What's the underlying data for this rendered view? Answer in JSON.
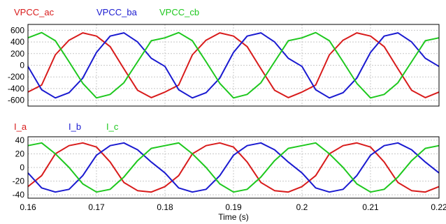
{
  "colors": {
    "red": "#d81b1b",
    "blue": "#1a1ad0",
    "green": "#1ec81e"
  },
  "chart_data": [
    {
      "type": "line",
      "xlabel": "",
      "ylabel": "",
      "xlim": [
        0.16,
        0.22
      ],
      "ylim": [
        -700,
        700
      ],
      "yticks": [
        "600",
        "400",
        "200",
        "0",
        "-200",
        "-400",
        "-600"
      ],
      "ytick_values": [
        600,
        400,
        200,
        0,
        -200,
        -400,
        -600
      ],
      "grid": true,
      "legend_position": "top-left",
      "series": [
        {
          "name": "VPCC_ac",
          "color": "#d81b1b",
          "x": [
            0.16,
            0.162,
            0.164,
            0.166,
            0.168,
            0.17,
            0.172,
            0.174,
            0.176,
            0.178,
            0.18,
            0.182,
            0.184,
            0.186,
            0.188,
            0.19,
            0.192,
            0.194,
            0.196,
            0.198,
            0.2,
            0.202,
            0.204,
            0.206,
            0.208,
            0.21,
            0.212,
            0.214,
            0.216,
            0.218,
            0.22
          ],
          "values": [
            -460,
            -340,
            180,
            430,
            555,
            500,
            320,
            -60,
            -430,
            -555,
            -460,
            -340,
            180,
            430,
            555,
            500,
            320,
            -60,
            -430,
            -555,
            -460,
            -340,
            180,
            430,
            555,
            500,
            320,
            -60,
            -430,
            -555,
            -460
          ]
        },
        {
          "name": "VPCC_ba",
          "color": "#1a1ad0",
          "x": [
            0.16,
            0.162,
            0.164,
            0.166,
            0.168,
            0.17,
            0.172,
            0.174,
            0.176,
            0.178,
            0.18,
            0.182,
            0.184,
            0.186,
            0.188,
            0.19,
            0.192,
            0.194,
            0.196,
            0.198,
            0.2,
            0.202,
            0.204,
            0.206,
            0.208,
            0.21,
            0.212,
            0.214,
            0.216,
            0.218,
            0.22
          ],
          "values": [
            -20,
            -420,
            -560,
            -470,
            -220,
            220,
            500,
            555,
            400,
            120,
            -20,
            -420,
            -560,
            -470,
            -220,
            220,
            500,
            555,
            400,
            120,
            -20,
            -420,
            -560,
            -470,
            -220,
            220,
            500,
            555,
            400,
            120,
            -20
          ]
        },
        {
          "name": "VPCC_cb",
          "color": "#1ec81e",
          "x": [
            0.16,
            0.162,
            0.164,
            0.166,
            0.168,
            0.17,
            0.172,
            0.174,
            0.176,
            0.178,
            0.18,
            0.182,
            0.184,
            0.186,
            0.188,
            0.19,
            0.192,
            0.194,
            0.196,
            0.198,
            0.2,
            0.202,
            0.204,
            0.206,
            0.208,
            0.21,
            0.212,
            0.214,
            0.216,
            0.218,
            0.22
          ],
          "values": [
            470,
            560,
            420,
            60,
            -310,
            -560,
            -500,
            -300,
            60,
            420,
            470,
            560,
            420,
            60,
            -310,
            -560,
            -500,
            -300,
            60,
            420,
            470,
            560,
            420,
            60,
            -310,
            -560,
            -500,
            -300,
            60,
            420,
            470
          ]
        }
      ]
    },
    {
      "type": "line",
      "xlabel": "Time (s)",
      "ylabel": "",
      "xlim": [
        0.16,
        0.22
      ],
      "ylim": [
        -45,
        45
      ],
      "yticks": [
        "40",
        "20",
        "0",
        "-20",
        "-40"
      ],
      "ytick_values": [
        40,
        20,
        0,
        -20,
        -40
      ],
      "xticks": [
        "0.16",
        "0.17",
        "0.18",
        "0.19",
        "0.2",
        "0.21",
        "0.22"
      ],
      "xtick_values": [
        0.16,
        0.17,
        0.18,
        0.19,
        0.2,
        0.21,
        0.22
      ],
      "grid": true,
      "legend_position": "top-left",
      "series": [
        {
          "name": "I_a",
          "color": "#d81b1b",
          "x": [
            0.16,
            0.162,
            0.164,
            0.166,
            0.168,
            0.17,
            0.172,
            0.174,
            0.176,
            0.178,
            0.18,
            0.182,
            0.184,
            0.186,
            0.188,
            0.19,
            0.192,
            0.194,
            0.196,
            0.198,
            0.2,
            0.202,
            0.204,
            0.206,
            0.208,
            0.21,
            0.212,
            0.214,
            0.216,
            0.218,
            0.22
          ],
          "values": [
            -28,
            -12,
            20,
            32,
            36,
            30,
            8,
            -22,
            -34,
            -36,
            -28,
            -12,
            20,
            32,
            36,
            30,
            8,
            -22,
            -34,
            -36,
            -28,
            -12,
            20,
            32,
            36,
            30,
            8,
            -22,
            -34,
            -36,
            -28
          ]
        },
        {
          "name": "I_b",
          "color": "#1a1ad0",
          "x": [
            0.16,
            0.162,
            0.164,
            0.166,
            0.168,
            0.17,
            0.172,
            0.174,
            0.176,
            0.178,
            0.18,
            0.182,
            0.184,
            0.186,
            0.188,
            0.19,
            0.192,
            0.194,
            0.196,
            0.198,
            0.2,
            0.202,
            0.204,
            0.206,
            0.208,
            0.21,
            0.212,
            0.214,
            0.216,
            0.218,
            0.22
          ],
          "values": [
            -8,
            -30,
            -36,
            -32,
            -12,
            18,
            32,
            36,
            26,
            8,
            -8,
            -30,
            -36,
            -32,
            -12,
            18,
            32,
            36,
            26,
            8,
            -8,
            -30,
            -36,
            -32,
            -12,
            18,
            32,
            36,
            26,
            8,
            -8
          ]
        },
        {
          "name": "I_c",
          "color": "#1ec81e",
          "x": [
            0.16,
            0.162,
            0.164,
            0.166,
            0.168,
            0.17,
            0.172,
            0.174,
            0.176,
            0.178,
            0.18,
            0.182,
            0.184,
            0.186,
            0.188,
            0.19,
            0.192,
            0.194,
            0.196,
            0.198,
            0.2,
            0.202,
            0.204,
            0.206,
            0.208,
            0.21,
            0.212,
            0.214,
            0.216,
            0.218,
            0.22
          ],
          "values": [
            32,
            36,
            20,
            0,
            -24,
            -36,
            -32,
            -14,
            10,
            28,
            32,
            36,
            20,
            0,
            -24,
            -36,
            -32,
            -14,
            10,
            28,
            32,
            36,
            20,
            0,
            -24,
            -36,
            -32,
            -14,
            10,
            28,
            32
          ]
        }
      ]
    }
  ]
}
